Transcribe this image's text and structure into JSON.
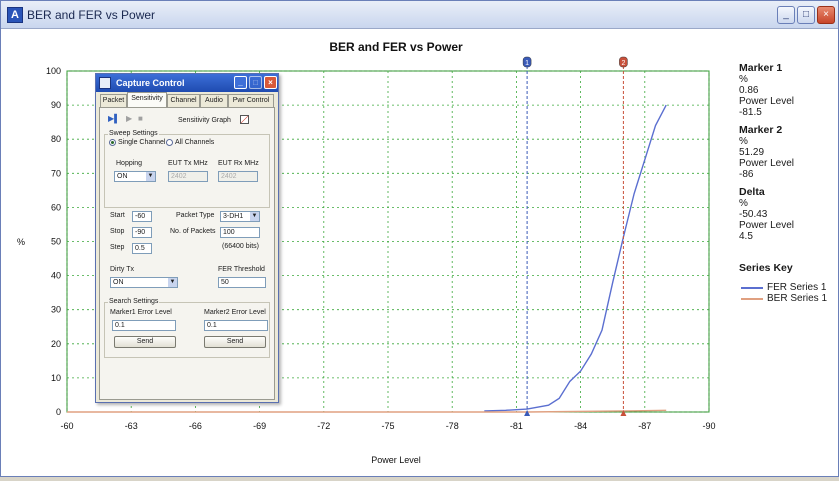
{
  "window": {
    "title": "BER and FER vs Power",
    "minimize": "_",
    "maximize": "□",
    "close": "×"
  },
  "chart_data": {
    "type": "line",
    "title": "BER and FER vs Power",
    "xlabel": "Power Level",
    "ylabel": "%",
    "xlim": [
      -60,
      -90
    ],
    "ylim": [
      0,
      100
    ],
    "xticks": [
      -60,
      -63,
      -66,
      -69,
      -72,
      -75,
      -78,
      -81,
      -84,
      -87,
      -90
    ],
    "yticks": [
      0,
      10,
      20,
      30,
      40,
      50,
      60,
      70,
      80,
      90,
      100
    ],
    "grid": true,
    "legend_position": "right",
    "series": [
      {
        "name": "FER Series 1",
        "color": "#5b6fd0",
        "x": [
          -79.5,
          -80.5,
          -81.5,
          -82.5,
          -83,
          -83.5,
          -84,
          -84.5,
          -85,
          -85.5,
          -86,
          -86.5,
          -87,
          -87.5,
          -88
        ],
        "y": [
          0.3,
          0.5,
          0.86,
          2,
          4,
          9,
          12,
          17,
          24,
          38,
          51.29,
          64,
          74,
          84,
          90
        ]
      },
      {
        "name": "BER Series 1",
        "color": "#e0a080",
        "x": [
          -60,
          -81.5,
          -86,
          -88
        ],
        "y": [
          0,
          0,
          0.3,
          0.5
        ]
      }
    ],
    "markers": [
      {
        "id": "1",
        "x": -81.5,
        "color": "#3a5ab8"
      },
      {
        "id": "2",
        "x": -86,
        "color": "#c8503a"
      }
    ]
  },
  "side": {
    "marker1": {
      "title": "Marker 1",
      "unit": "%",
      "value": "0.86",
      "power_label": "Power Level",
      "power": "-81.5"
    },
    "marker2": {
      "title": "Marker 2",
      "unit": "%",
      "value": "51.29",
      "power_label": "Power Level",
      "power": "-86"
    },
    "delta": {
      "title": "Delta",
      "unit": "%",
      "value": "-50.43",
      "power_label": "Power Level",
      "power": "4.5"
    },
    "series_key": {
      "title": "Series Key",
      "items": [
        "FER Series 1",
        "BER Series 1"
      ]
    }
  },
  "dialog": {
    "title": "Capture Control",
    "tabs": [
      "Packet",
      "Sensitivity",
      "Channel",
      "Audio",
      "Pwr Control"
    ],
    "sensitivity_graph": "Sensitivity Graph",
    "sweep_settings": "Sweep Settings",
    "single_channel": "Single Channel",
    "all_channels": "All Channels",
    "hopping_label": "Hopping",
    "hopping_value": "ON",
    "eut_tx": "EUT Tx MHz",
    "eut_rx": "EUT Rx MHz",
    "eut_tx_value": "2402",
    "eut_rx_value": "2402",
    "start_label": "Start",
    "start_value": "-60",
    "stop_label": "Stop",
    "stop_value": "-90",
    "step_label": "Step",
    "step_value": "0.5",
    "packet_type_label": "Packet Type",
    "packet_type_value": "3-DH1",
    "no_packets_label": "No. of Packets",
    "no_packets_value": "100",
    "bits_note": "(66400 bits)",
    "dirty_tx_label": "Dirty Tx",
    "dirty_tx_value": "ON",
    "fer_threshold_label": "FER Threshold",
    "fer_threshold_value": "50",
    "search_settings": "Search Settings",
    "marker1_error": "Marker1 Error Level",
    "marker2_error": "Marker2 Error Level",
    "marker1_error_value": "0.1",
    "marker2_error_value": "0.1",
    "send": "Send"
  }
}
